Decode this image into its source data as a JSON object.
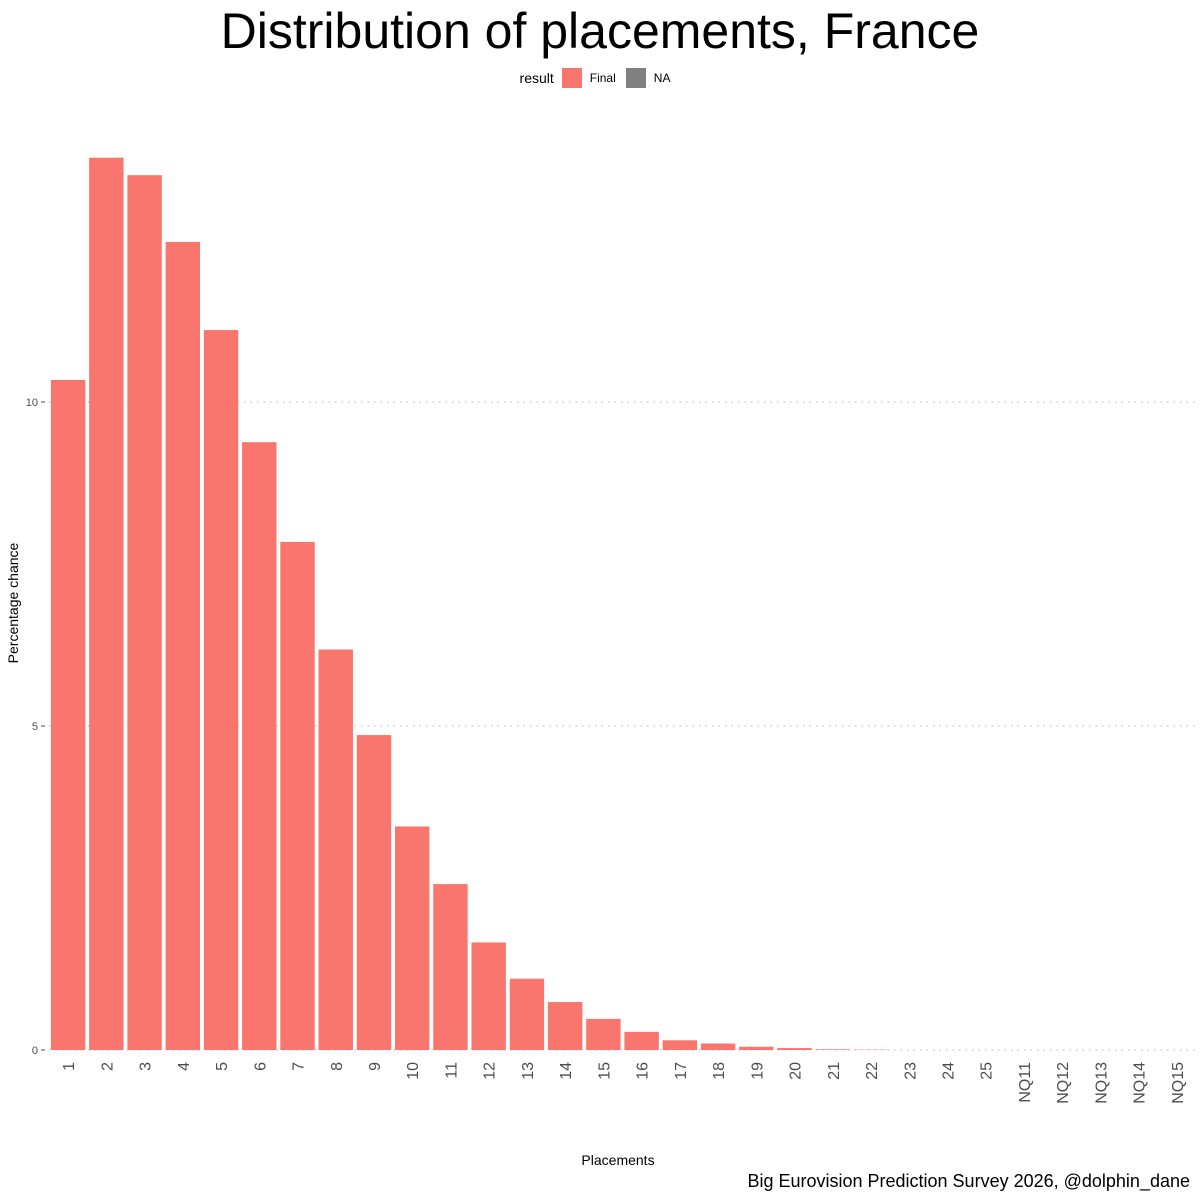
{
  "chart_data": {
    "type": "bar",
    "title": "Distribution of placements, France",
    "xlabel": "Placements",
    "ylabel": "Percentage chance",
    "caption": "Big Eurovision Prediction Survey 2026, @dolphin_dane",
    "legend": {
      "title": "result",
      "placement": "top",
      "entries": [
        {
          "label": "Final",
          "color": "#F8766D"
        },
        {
          "label": "NA",
          "color": "#808080"
        }
      ]
    },
    "categories": [
      "1",
      "2",
      "3",
      "4",
      "5",
      "6",
      "7",
      "8",
      "9",
      "10",
      "11",
      "12",
      "13",
      "14",
      "15",
      "16",
      "17",
      "18",
      "19",
      "20",
      "21",
      "22",
      "23",
      "24",
      "25",
      "NQ11",
      "NQ12",
      "NQ13",
      "NQ14",
      "NQ15"
    ],
    "values": [
      10.34,
      13.77,
      13.5,
      12.47,
      11.11,
      9.38,
      7.84,
      6.18,
      4.86,
      3.45,
      2.56,
      1.66,
      1.1,
      0.74,
      0.48,
      0.28,
      0.15,
      0.1,
      0.05,
      0.03,
      0.01,
      0.005,
      0,
      0,
      0,
      0,
      0,
      0,
      0,
      0
    ],
    "yticks": [
      0,
      5,
      10
    ],
    "ylim": [
      0,
      14.5
    ],
    "grid": "horizontal-dotted",
    "bar_color": "#F8766D"
  }
}
